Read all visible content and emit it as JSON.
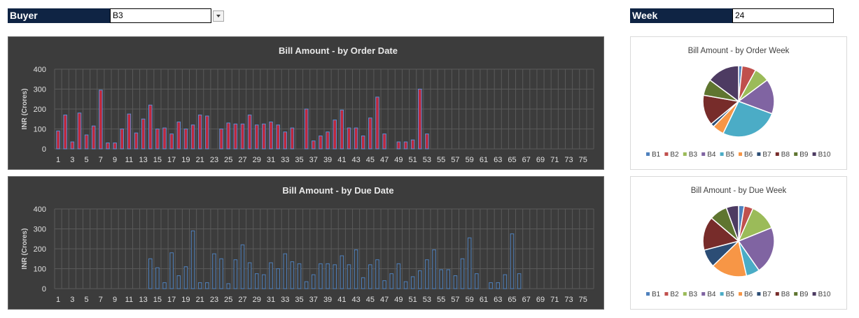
{
  "filters": {
    "buyer": {
      "label": "Buyer",
      "value": "B3"
    },
    "week": {
      "label": "Week",
      "value": "24"
    }
  },
  "colors": {
    "panel_dark": "#3c3c3c",
    "order_bar_fill": "#c0283c",
    "order_bar_edge": "#5b8fd6",
    "due_bar_fill": "#3d3d3d",
    "due_bar_edge": "#4f81bd",
    "header_navy": "#0f2444",
    "pie_palette": [
      "#4f81bd",
      "#c0504d",
      "#9bbb59",
      "#8064a2",
      "#4bacc6",
      "#f79646",
      "#2c4d75",
      "#772c2a",
      "#5f7530",
      "#4d3b62"
    ]
  },
  "chart_data": [
    {
      "type": "bar",
      "title": "Bill Amount - by Order Date",
      "xlabel": "",
      "ylabel": "INR (Crores)",
      "ylim": [
        0,
        400
      ],
      "yticks": [
        0,
        100,
        200,
        300,
        400
      ],
      "grid": true,
      "legend": "none",
      "categories": [
        1,
        2,
        3,
        4,
        5,
        6,
        7,
        8,
        9,
        10,
        11,
        12,
        13,
        14,
        15,
        16,
        17,
        18,
        19,
        20,
        21,
        22,
        23,
        24,
        25,
        26,
        27,
        28,
        29,
        30,
        31,
        32,
        33,
        34,
        35,
        36,
        37,
        38,
        39,
        40,
        41,
        42,
        43,
        44,
        45,
        46,
        47,
        48,
        49,
        50,
        51,
        52,
        53,
        54,
        55,
        56,
        57,
        58,
        59,
        60,
        61,
        62,
        63,
        64,
        65,
        66,
        67,
        68,
        69,
        70,
        71,
        72,
        73,
        74,
        75,
        76
      ],
      "xtick_labels": [
        "1",
        "3",
        "5",
        "7",
        "9",
        "11",
        "13",
        "15",
        "17",
        "19",
        "21",
        "23",
        "25",
        "27",
        "29",
        "31",
        "33",
        "35",
        "37",
        "39",
        "41",
        "43",
        "45",
        "47",
        "49",
        "51",
        "53",
        "55",
        "57",
        "59",
        "61",
        "63",
        "65",
        "67",
        "69",
        "71",
        "73",
        "75"
      ],
      "values": [
        90,
        170,
        35,
        180,
        70,
        115,
        295,
        30,
        30,
        100,
        175,
        80,
        150,
        220,
        100,
        105,
        75,
        135,
        100,
        120,
        170,
        165,
        0,
        100,
        130,
        125,
        125,
        170,
        120,
        125,
        135,
        120,
        85,
        105,
        0,
        200,
        40,
        65,
        85,
        145,
        195,
        105,
        105,
        65,
        155,
        260,
        75,
        0,
        35,
        35,
        45,
        300,
        75,
        0,
        0,
        0,
        0,
        0,
        0,
        0,
        0,
        0,
        0,
        0,
        0,
        0,
        0,
        0,
        0,
        0,
        0,
        0,
        0,
        0,
        0,
        0
      ]
    },
    {
      "type": "bar",
      "title": "Bill Amount - by Due Date",
      "xlabel": "",
      "ylabel": "INR (Crores)",
      "ylim": [
        0,
        400
      ],
      "yticks": [
        0,
        100,
        200,
        300,
        400
      ],
      "grid": true,
      "legend": "none",
      "categories": [
        1,
        2,
        3,
        4,
        5,
        6,
        7,
        8,
        9,
        10,
        11,
        12,
        13,
        14,
        15,
        16,
        17,
        18,
        19,
        20,
        21,
        22,
        23,
        24,
        25,
        26,
        27,
        28,
        29,
        30,
        31,
        32,
        33,
        34,
        35,
        36,
        37,
        38,
        39,
        40,
        41,
        42,
        43,
        44,
        45,
        46,
        47,
        48,
        49,
        50,
        51,
        52,
        53,
        54,
        55,
        56,
        57,
        58,
        59,
        60,
        61,
        62,
        63,
        64,
        65,
        66,
        67,
        68,
        69,
        70,
        71,
        72,
        73,
        74,
        75,
        76
      ],
      "xtick_labels": [
        "1",
        "3",
        "5",
        "7",
        "9",
        "11",
        "13",
        "15",
        "17",
        "19",
        "21",
        "23",
        "25",
        "27",
        "29",
        "31",
        "33",
        "35",
        "37",
        "39",
        "41",
        "43",
        "45",
        "47",
        "49",
        "51",
        "53",
        "55",
        "57",
        "59",
        "61",
        "63",
        "65",
        "67",
        "69",
        "71",
        "73",
        "75"
      ],
      "values": [
        0,
        0,
        0,
        0,
        0,
        0,
        0,
        0,
        0,
        0,
        0,
        0,
        0,
        150,
        105,
        30,
        180,
        65,
        110,
        290,
        30,
        30,
        175,
        150,
        25,
        145,
        220,
        130,
        75,
        70,
        130,
        100,
        175,
        135,
        125,
        35,
        70,
        125,
        125,
        120,
        165,
        120,
        195,
        55,
        120,
        145,
        40,
        75,
        125,
        35,
        60,
        90,
        145,
        195,
        95,
        95,
        65,
        150,
        255,
        75,
        0,
        30,
        30,
        70,
        275,
        75,
        0,
        0,
        0,
        0,
        0,
        0,
        0,
        0,
        0,
        0
      ]
    },
    {
      "type": "pie",
      "title": "Bill Amount - by Order Week",
      "legend": "bottom",
      "labels": [
        "B1",
        "B2",
        "B3",
        "B4",
        "B5",
        "B6",
        "B7",
        "B8",
        "B9",
        "B10"
      ],
      "values": [
        1.5,
        6,
        6.5,
        15,
        25,
        5,
        1.5,
        13,
        7,
        14
      ]
    },
    {
      "type": "pie",
      "title": "Bill Amount - by Due Week",
      "legend": "bottom",
      "labels": [
        "B1",
        "B2",
        "B3",
        "B4",
        "B5",
        "B6",
        "B7",
        "B8",
        "B9",
        "B10"
      ],
      "values": [
        2.5,
        4,
        12,
        21,
        6,
        16,
        8,
        15,
        8,
        5.5
      ]
    }
  ]
}
